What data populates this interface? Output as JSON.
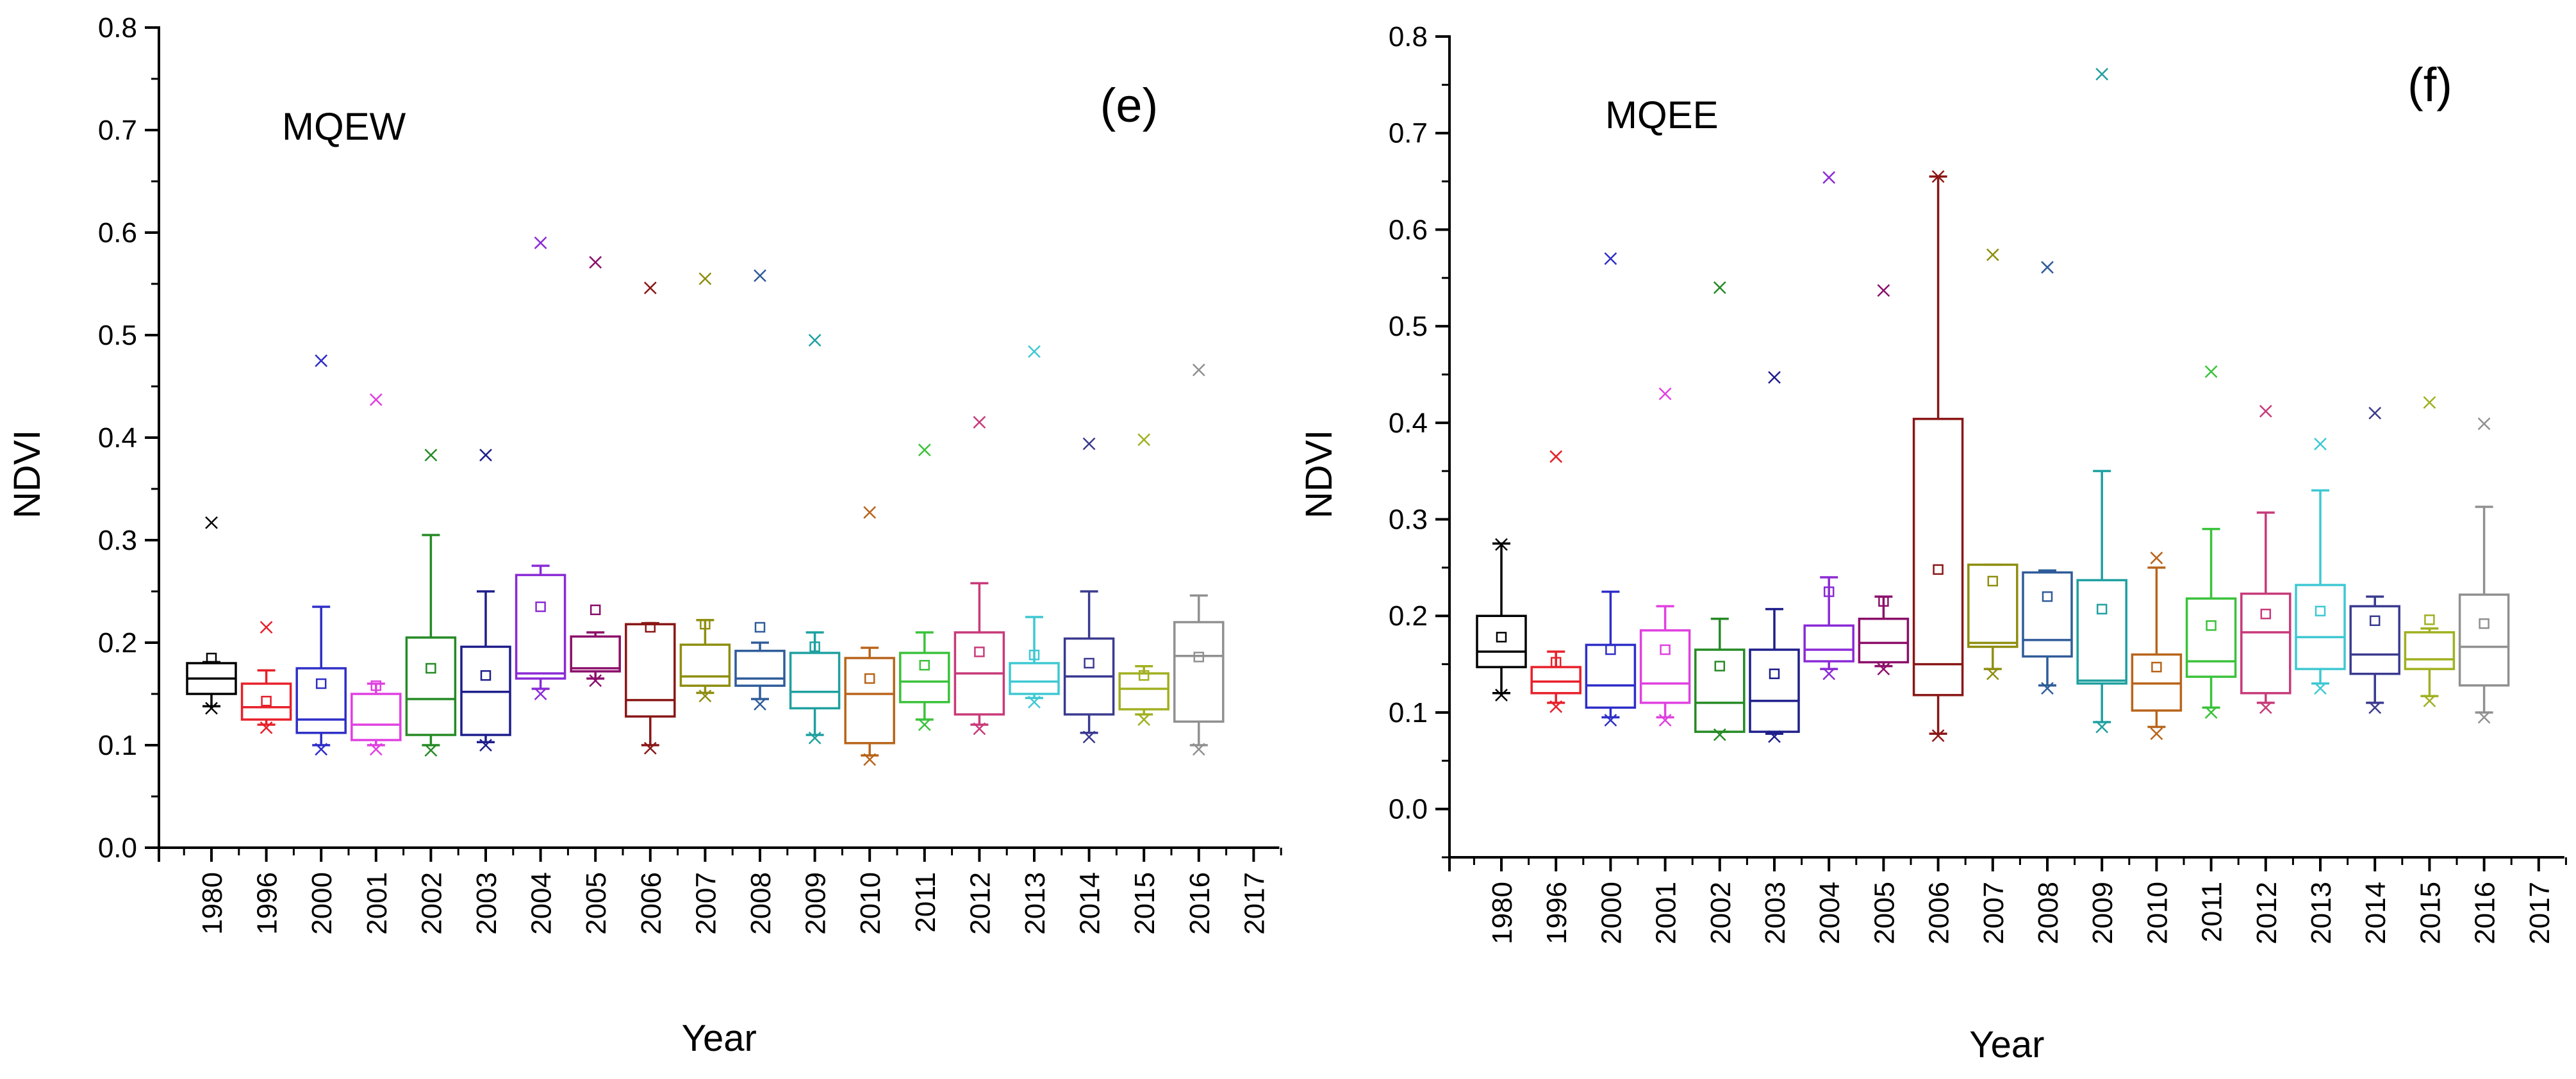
{
  "chart_data": [
    {
      "type": "box",
      "panel_label": "(e)",
      "site": "MQEW",
      "xlabel": "Year",
      "ylabel": "NDVI",
      "ylim": [
        0,
        0.8
      ],
      "yticks": [
        "0.0",
        "0.1",
        "0.2",
        "0.3",
        "0.4",
        "0.5",
        "0.6",
        "0.7",
        "0.8"
      ],
      "categories": [
        "1980",
        "1996",
        "2000",
        "2001",
        "2002",
        "2003",
        "2004",
        "2005",
        "2006",
        "2007",
        "2008",
        "2009",
        "2010",
        "2011",
        "2012",
        "2013",
        "2014",
        "2015",
        "2016",
        "2017"
      ],
      "colors": [
        "#000000",
        "#e8202a",
        "#2e2ec8",
        "#e040e0",
        "#258a25",
        "#1e1e8c",
        "#8a2ad6",
        "#8c0f6a",
        "#8a1616",
        "#8e8e10",
        "#2f5c9a",
        "#1fa0a0",
        "#b8641a",
        "#3ac23a",
        "#c83a7a",
        "#3ec8d2",
        "#3a3a90",
        "#a0b020",
        "#909090",
        "#777777"
      ],
      "boxes": [
        {
          "category": "1980",
          "whisker_low": 0.138,
          "q1": 0.15,
          "median": 0.165,
          "q3": 0.18,
          "whisker_high": 0.181,
          "mean": 0.185,
          "min_marker": 0.136,
          "max_marker": 0.317
        },
        {
          "category": "1996",
          "whisker_low": 0.12,
          "q1": 0.125,
          "median": 0.137,
          "q3": 0.16,
          "whisker_high": 0.173,
          "mean": 0.143,
          "min_marker": 0.117,
          "max_marker": 0.215
        },
        {
          "category": "2000",
          "whisker_low": 0.1,
          "q1": 0.112,
          "median": 0.125,
          "q3": 0.175,
          "whisker_high": 0.235,
          "mean": 0.16,
          "min_marker": 0.096,
          "max_marker": 0.475
        },
        {
          "category": "2001",
          "whisker_low": 0.1,
          "q1": 0.105,
          "median": 0.12,
          "q3": 0.15,
          "whisker_high": 0.16,
          "mean": 0.158,
          "min_marker": 0.096,
          "max_marker": 0.437
        },
        {
          "category": "2002",
          "whisker_low": 0.1,
          "q1": 0.11,
          "median": 0.145,
          "q3": 0.205,
          "whisker_high": 0.305,
          "mean": 0.175,
          "min_marker": 0.095,
          "max_marker": 0.383
        },
        {
          "category": "2003",
          "whisker_low": 0.103,
          "q1": 0.11,
          "median": 0.152,
          "q3": 0.196,
          "whisker_high": 0.25,
          "mean": 0.168,
          "min_marker": 0.1,
          "max_marker": 0.383
        },
        {
          "category": "2004",
          "whisker_low": 0.155,
          "q1": 0.165,
          "median": 0.17,
          "q3": 0.266,
          "whisker_high": 0.275,
          "mean": 0.235,
          "min_marker": 0.15,
          "max_marker": 0.59
        },
        {
          "category": "2005",
          "whisker_low": 0.165,
          "q1": 0.172,
          "median": 0.175,
          "q3": 0.206,
          "whisker_high": 0.21,
          "mean": 0.232,
          "min_marker": 0.163,
          "max_marker": 0.571
        },
        {
          "category": "2006",
          "whisker_low": 0.1,
          "q1": 0.128,
          "median": 0.144,
          "q3": 0.218,
          "whisker_high": 0.219,
          "mean": 0.215,
          "min_marker": 0.097,
          "max_marker": 0.546
        },
        {
          "category": "2007",
          "whisker_low": 0.151,
          "q1": 0.158,
          "median": 0.167,
          "q3": 0.198,
          "whisker_high": 0.222,
          "mean": 0.218,
          "min_marker": 0.148,
          "max_marker": 0.555
        },
        {
          "category": "2008",
          "whisker_low": 0.145,
          "q1": 0.158,
          "median": 0.165,
          "q3": 0.192,
          "whisker_high": 0.2,
          "mean": 0.215,
          "min_marker": 0.14,
          "max_marker": 0.558
        },
        {
          "category": "2009",
          "whisker_low": 0.11,
          "q1": 0.136,
          "median": 0.152,
          "q3": 0.19,
          "whisker_high": 0.21,
          "mean": 0.196,
          "min_marker": 0.107,
          "max_marker": 0.495
        },
        {
          "category": "2010",
          "whisker_low": 0.09,
          "q1": 0.102,
          "median": 0.15,
          "q3": 0.185,
          "whisker_high": 0.195,
          "mean": 0.165,
          "min_marker": 0.086,
          "max_marker": 0.327
        },
        {
          "category": "2011",
          "whisker_low": 0.125,
          "q1": 0.142,
          "median": 0.162,
          "q3": 0.19,
          "whisker_high": 0.21,
          "mean": 0.178,
          "min_marker": 0.12,
          "max_marker": 0.388
        },
        {
          "category": "2012",
          "whisker_low": 0.12,
          "q1": 0.13,
          "median": 0.17,
          "q3": 0.21,
          "whisker_high": 0.258,
          "mean": 0.191,
          "min_marker": 0.116,
          "max_marker": 0.415
        },
        {
          "category": "2013",
          "whisker_low": 0.146,
          "q1": 0.15,
          "median": 0.162,
          "q3": 0.18,
          "whisker_high": 0.225,
          "mean": 0.188,
          "min_marker": 0.142,
          "max_marker": 0.484
        },
        {
          "category": "2014",
          "whisker_low": 0.112,
          "q1": 0.13,
          "median": 0.167,
          "q3": 0.204,
          "whisker_high": 0.25,
          "mean": 0.18,
          "min_marker": 0.108,
          "max_marker": 0.394
        },
        {
          "category": "2015",
          "whisker_low": 0.13,
          "q1": 0.135,
          "median": 0.155,
          "q3": 0.17,
          "whisker_high": 0.177,
          "mean": 0.168,
          "min_marker": 0.125,
          "max_marker": 0.398
        },
        {
          "category": "2016",
          "whisker_low": 0.1,
          "q1": 0.123,
          "median": 0.187,
          "q3": 0.22,
          "whisker_high": 0.246,
          "mean": 0.186,
          "min_marker": 0.096,
          "max_marker": 0.466
        }
      ]
    },
    {
      "type": "box",
      "panel_label": "(f)",
      "site": "MQEE",
      "xlabel": "Year",
      "ylabel": "NDVI",
      "ylim": [
        -0.05,
        0.8
      ],
      "yticks": [
        "0.0",
        "0.1",
        "0.2",
        "0.3",
        "0.4",
        "0.5",
        "0.6",
        "0.7",
        "0.8"
      ],
      "categories": [
        "1980",
        "1996",
        "2000",
        "2001",
        "2002",
        "2003",
        "2004",
        "2005",
        "2006",
        "2007",
        "2008",
        "2009",
        "2010",
        "2011",
        "2012",
        "2013",
        "2014",
        "2015",
        "2016",
        "2017"
      ],
      "colors": [
        "#000000",
        "#e8202a",
        "#2e2ec8",
        "#e040e0",
        "#258a25",
        "#1e1e8c",
        "#8a2ad6",
        "#8c0f6a",
        "#8a1616",
        "#8e8e10",
        "#2f5c9a",
        "#1fa0a0",
        "#b8641a",
        "#3ac23a",
        "#c83a7a",
        "#3ec8d2",
        "#3a3a90",
        "#a0b020",
        "#909090",
        "#777777"
      ],
      "boxes": [
        {
          "category": "1980",
          "whisker_low": 0.12,
          "q1": 0.147,
          "median": 0.163,
          "q3": 0.2,
          "whisker_high": 0.275,
          "mean": 0.178,
          "min_marker": 0.118,
          "max_marker": 0.274
        },
        {
          "category": "1996",
          "whisker_low": 0.11,
          "q1": 0.12,
          "median": 0.132,
          "q3": 0.147,
          "whisker_high": 0.163,
          "mean": 0.152,
          "min_marker": 0.106,
          "max_marker": 0.365
        },
        {
          "category": "2000",
          "whisker_low": 0.095,
          "q1": 0.105,
          "median": 0.128,
          "q3": 0.17,
          "whisker_high": 0.225,
          "mean": 0.165,
          "min_marker": 0.092,
          "max_marker": 0.57
        },
        {
          "category": "2001",
          "whisker_low": 0.095,
          "q1": 0.11,
          "median": 0.13,
          "q3": 0.185,
          "whisker_high": 0.21,
          "mean": 0.165,
          "min_marker": 0.092,
          "max_marker": 0.43
        },
        {
          "category": "2002",
          "whisker_low": 0.08,
          "q1": 0.08,
          "median": 0.11,
          "q3": 0.165,
          "whisker_high": 0.197,
          "mean": 0.148,
          "min_marker": 0.077,
          "max_marker": 0.54
        },
        {
          "category": "2003",
          "whisker_low": 0.078,
          "q1": 0.08,
          "median": 0.112,
          "q3": 0.165,
          "whisker_high": 0.207,
          "mean": 0.14,
          "min_marker": 0.075,
          "max_marker": 0.447
        },
        {
          "category": "2004",
          "whisker_low": 0.145,
          "q1": 0.153,
          "median": 0.165,
          "q3": 0.19,
          "whisker_high": 0.24,
          "mean": 0.225,
          "min_marker": 0.14,
          "max_marker": 0.654
        },
        {
          "category": "2005",
          "whisker_low": 0.148,
          "q1": 0.152,
          "median": 0.172,
          "q3": 0.197,
          "whisker_high": 0.22,
          "mean": 0.215,
          "min_marker": 0.145,
          "max_marker": 0.537
        },
        {
          "category": "2006",
          "whisker_low": 0.078,
          "q1": 0.118,
          "median": 0.15,
          "q3": 0.404,
          "whisker_high": 0.655,
          "mean": 0.248,
          "min_marker": 0.076,
          "max_marker": 0.655
        },
        {
          "category": "2007",
          "whisker_low": 0.145,
          "q1": 0.168,
          "median": 0.172,
          "q3": 0.253,
          "whisker_high": 0.253,
          "mean": 0.236,
          "min_marker": 0.14,
          "max_marker": 0.574
        },
        {
          "category": "2008",
          "whisker_low": 0.128,
          "q1": 0.158,
          "median": 0.175,
          "q3": 0.245,
          "whisker_high": 0.247,
          "mean": 0.22,
          "min_marker": 0.125,
          "max_marker": 0.561
        },
        {
          "category": "2009",
          "whisker_low": 0.09,
          "q1": 0.13,
          "median": 0.133,
          "q3": 0.237,
          "whisker_high": 0.35,
          "mean": 0.207,
          "min_marker": 0.085,
          "max_marker": 0.761
        },
        {
          "category": "2010",
          "whisker_low": 0.085,
          "q1": 0.102,
          "median": 0.13,
          "q3": 0.16,
          "whisker_high": 0.25,
          "mean": 0.147,
          "min_marker": 0.078,
          "max_marker": 0.26
        },
        {
          "category": "2011",
          "whisker_low": 0.105,
          "q1": 0.137,
          "median": 0.153,
          "q3": 0.218,
          "whisker_high": 0.29,
          "mean": 0.19,
          "min_marker": 0.1,
          "max_marker": 0.453
        },
        {
          "category": "2012",
          "whisker_low": 0.11,
          "q1": 0.12,
          "median": 0.183,
          "q3": 0.223,
          "whisker_high": 0.307,
          "mean": 0.202,
          "min_marker": 0.105,
          "max_marker": 0.412
        },
        {
          "category": "2013",
          "whisker_low": 0.13,
          "q1": 0.145,
          "median": 0.178,
          "q3": 0.232,
          "whisker_high": 0.33,
          "mean": 0.205,
          "min_marker": 0.125,
          "max_marker": 0.378
        },
        {
          "category": "2014",
          "whisker_low": 0.11,
          "q1": 0.14,
          "median": 0.16,
          "q3": 0.21,
          "whisker_high": 0.22,
          "mean": 0.195,
          "min_marker": 0.105,
          "max_marker": 0.41
        },
        {
          "category": "2015",
          "whisker_low": 0.117,
          "q1": 0.145,
          "median": 0.155,
          "q3": 0.183,
          "whisker_high": 0.187,
          "mean": 0.196,
          "min_marker": 0.112,
          "max_marker": 0.421
        },
        {
          "category": "2016",
          "whisker_low": 0.1,
          "q1": 0.128,
          "median": 0.168,
          "q3": 0.222,
          "whisker_high": 0.313,
          "mean": 0.192,
          "min_marker": 0.095,
          "max_marker": 0.399
        }
      ]
    }
  ]
}
